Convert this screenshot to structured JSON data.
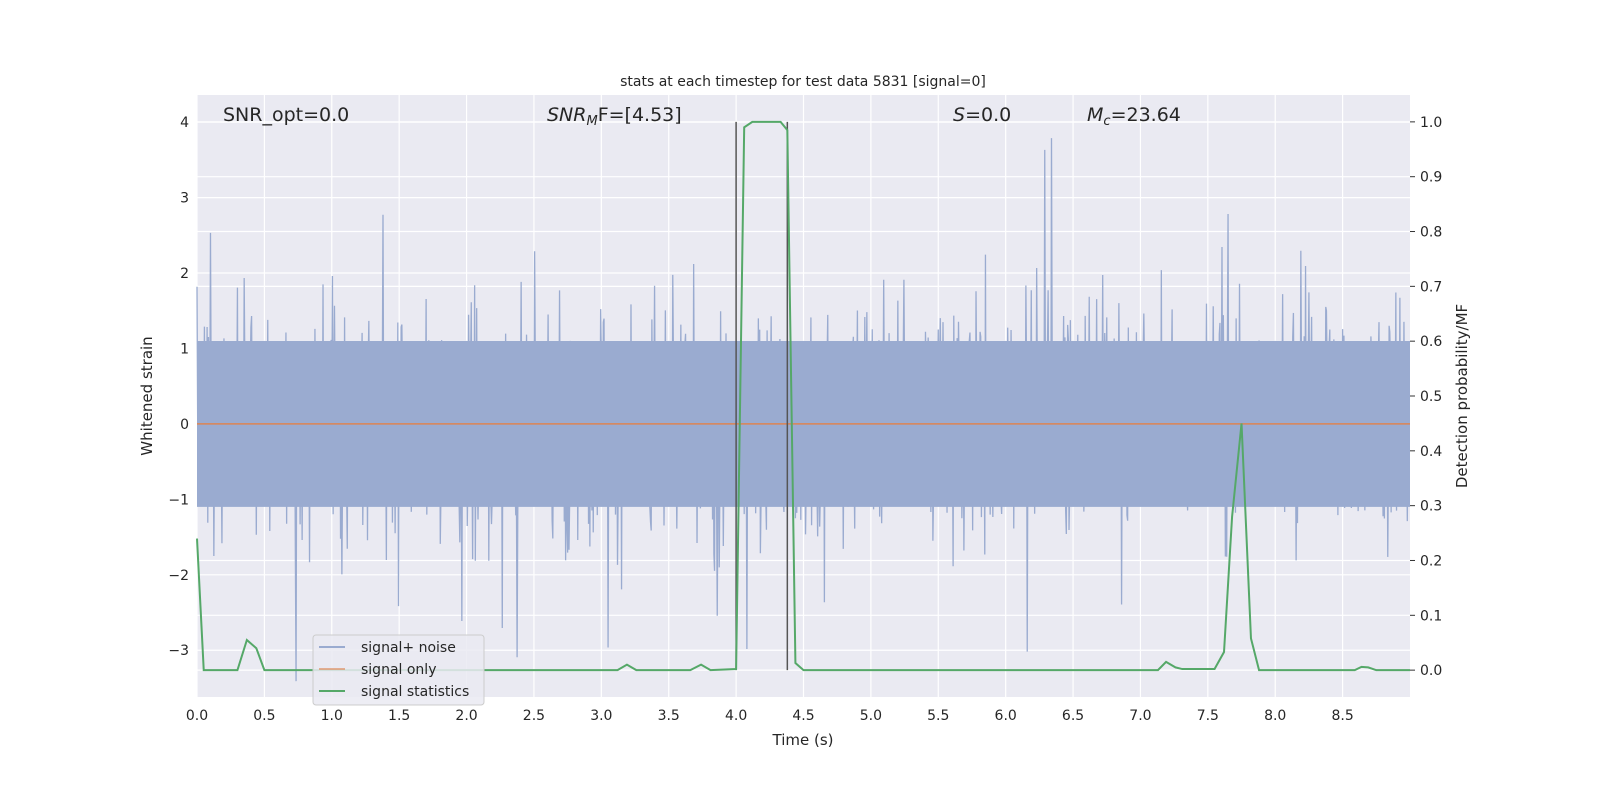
{
  "chart_data": {
    "type": "line",
    "title": "stats at each timestep for test data 5831 [signal=0]",
    "xlabel": "Time (s)",
    "ylabel": "Whitened strain",
    "ylabel_right": "Detection probability/MF",
    "xlim": [
      0,
      9.0
    ],
    "ylim": [
      -3.62,
      4.36
    ],
    "ylim_right": [
      -0.049,
      1.049
    ],
    "grid": true,
    "x_ticks": [
      "0.0",
      "0.5",
      "1.0",
      "1.5",
      "2.0",
      "2.5",
      "3.0",
      "3.5",
      "4.0",
      "4.5",
      "5.0",
      "5.5",
      "6.0",
      "6.5",
      "7.0",
      "7.5",
      "8.0",
      "8.5"
    ],
    "y_ticks": [
      "−3",
      "−2",
      "−1",
      "0",
      "1",
      "2",
      "3",
      "4"
    ],
    "y_ticks_right": [
      "0.0",
      "0.1",
      "0.2",
      "0.3",
      "0.4",
      "0.5",
      "0.6",
      "0.7",
      "0.8",
      "0.9",
      "1.0"
    ],
    "annotations": {
      "snr_opt": "SNR_opt=0.0",
      "snr_mf_main": "SNR",
      "snr_mf_sub": "M",
      "snr_mf_rest": "F=[4.53]",
      "s_main": "S",
      "s_rest": "=0.0",
      "mc_main": "M",
      "mc_sub": "c",
      "mc_rest": "=23.64"
    },
    "legend": {
      "position": "lower-left",
      "entries": [
        "signal+ noise",
        "signal only",
        "signal statistics"
      ]
    },
    "colors": {
      "noise": "#9aabd0",
      "signal": "#dd8452",
      "stats": "#55a868",
      "vline": "#555555",
      "bg": "#eaeaf2"
    },
    "signal_only": {
      "value": 0
    },
    "noise": {
      "description_free": true,
      "approx_range": [
        -3.3,
        4.0
      ],
      "typical_amplitude": 1.1
    },
    "vlines_time": [
      4.0,
      4.38
    ],
    "series": [
      {
        "name": "signal statistics",
        "axis": "right",
        "x": [
          0,
          0.05,
          0.3,
          0.37,
          0.44,
          0.5,
          3.12,
          3.19,
          3.26,
          3.66,
          3.74,
          3.81,
          4.0,
          4.06,
          4.12,
          4.33,
          4.38,
          4.44,
          4.5,
          6.92,
          7.13,
          7.19,
          7.26,
          7.31,
          7.55,
          7.62,
          7.68,
          7.75,
          7.82,
          7.88,
          8.59,
          8.64,
          8.69,
          8.75,
          9.0
        ],
        "y": [
          0.24,
          0.0,
          0.0,
          0.055,
          0.04,
          0.0,
          0.0,
          0.01,
          0.0,
          0.0,
          0.01,
          0.0,
          0.002,
          0.99,
          1.0,
          1.0,
          0.985,
          0.013,
          0.0,
          0.0,
          0.0,
          0.015,
          0.005,
          0.002,
          0.002,
          0.033,
          0.28,
          0.45,
          0.058,
          0.0,
          0.0,
          0.006,
          0.005,
          0.0,
          0.0
        ]
      }
    ]
  }
}
